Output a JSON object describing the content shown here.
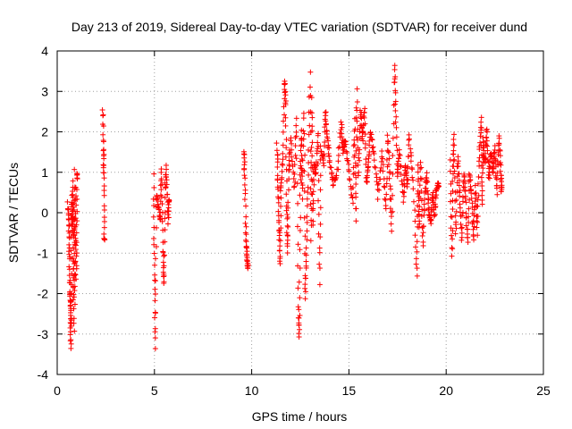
{
  "chart_data": {
    "type": "scatter",
    "title": "Day 213 of 2019, Sidereal Day-to-day VTEC variation (SDTVAR) for receiver dund",
    "xlabel": "GPS time / hours",
    "ylabel": "SDTVAR / TECUs",
    "xlim": [
      0,
      25
    ],
    "ylim": [
      -4,
      4
    ],
    "xticks": [
      "0",
      "5",
      "10",
      "15",
      "20",
      "25"
    ],
    "yticks": [
      "-4",
      "-3",
      "-2",
      "-1",
      "0",
      "1",
      "2",
      "3",
      "4"
    ],
    "grid": true,
    "marker": "plus",
    "color": "#ff0000",
    "series": [
      {
        "name": "SDTVAR",
        "segments": [
          [
            0.55,
            0.2
          ],
          [
            0.6,
            -0.3
          ],
          [
            0.62,
            -1.0
          ],
          [
            0.65,
            -1.9
          ],
          [
            0.68,
            -2.4
          ],
          [
            0.7,
            -3.3
          ],
          [
            0.72,
            -2.0
          ],
          [
            0.75,
            0.4
          ],
          [
            0.78,
            -0.5
          ],
          [
            0.8,
            0.8
          ],
          [
            0.82,
            -2.1
          ],
          [
            0.85,
            0.1
          ],
          [
            0.88,
            -3.0
          ],
          [
            0.9,
            1.0
          ],
          [
            0.92,
            -2.2
          ],
          [
            0.95,
            0.6
          ],
          [
            0.98,
            -1.6
          ],
          [
            1.02,
            0.9
          ],
          [
            2.35,
            2.6
          ],
          [
            2.38,
            1.5
          ],
          [
            2.4,
            0.9
          ],
          [
            2.42,
            -0.6
          ],
          [
            4.95,
            0.9
          ],
          [
            5.0,
            -1.3
          ],
          [
            5.05,
            -3.3
          ],
          [
            5.1,
            0.5
          ],
          [
            5.2,
            0.1
          ],
          [
            5.3,
            -0.2
          ],
          [
            5.35,
            1.1
          ],
          [
            5.45,
            -0.9
          ],
          [
            5.5,
            -1.8
          ],
          [
            5.55,
            0.6
          ],
          [
            5.6,
            1.1
          ],
          [
            5.7,
            -0.2
          ],
          [
            5.75,
            0.3
          ],
          [
            9.6,
            1.5
          ],
          [
            9.65,
            0.9
          ],
          [
            9.7,
            -0.5
          ],
          [
            9.75,
            -1.1
          ],
          [
            9.8,
            -1.3
          ],
          [
            11.3,
            1.7
          ],
          [
            11.35,
            0.8
          ],
          [
            11.4,
            -0.3
          ],
          [
            11.45,
            -1.3
          ],
          [
            11.5,
            0.5
          ],
          [
            11.6,
            1.3
          ],
          [
            11.7,
            3.3
          ],
          [
            11.75,
            2.7
          ],
          [
            11.8,
            0.2
          ],
          [
            11.85,
            -1.0
          ],
          [
            11.9,
            1.0
          ],
          [
            12.0,
            1.8
          ],
          [
            12.2,
            0.6
          ],
          [
            12.3,
            2.4
          ],
          [
            12.4,
            -2.4
          ],
          [
            12.45,
            -3.0
          ],
          [
            12.5,
            0.8
          ],
          [
            12.55,
            2.0
          ],
          [
            12.6,
            0.4
          ],
          [
            12.7,
            2.5
          ],
          [
            12.75,
            -2.1
          ],
          [
            12.8,
            -1.1
          ],
          [
            12.9,
            0.7
          ],
          [
            13.0,
            3.4
          ],
          [
            13.05,
            -0.7
          ],
          [
            13.1,
            2.8
          ],
          [
            13.15,
            -0.3
          ],
          [
            13.2,
            1.2
          ],
          [
            13.3,
            0.9
          ],
          [
            13.4,
            2.0
          ],
          [
            13.5,
            -1.7
          ],
          [
            13.55,
            1.6
          ],
          [
            13.7,
            1.2
          ],
          [
            13.8,
            2.5
          ],
          [
            13.9,
            1.8
          ],
          [
            14.0,
            1.3
          ],
          [
            14.2,
            0.7
          ],
          [
            14.4,
            1.0
          ],
          [
            14.6,
            2.2
          ],
          [
            14.7,
            1.5
          ],
          [
            14.8,
            1.8
          ],
          [
            15.0,
            1.1
          ],
          [
            15.2,
            0.2
          ],
          [
            15.3,
            2.3
          ],
          [
            15.35,
            -0.2
          ],
          [
            15.4,
            3.0
          ],
          [
            15.5,
            0.9
          ],
          [
            15.6,
            2.5
          ],
          [
            15.7,
            1.8
          ],
          [
            15.8,
            2.6
          ],
          [
            15.9,
            0.7
          ],
          [
            16.0,
            1.2
          ],
          [
            16.1,
            2.0
          ],
          [
            16.3,
            1.4
          ],
          [
            16.5,
            0.4
          ],
          [
            16.7,
            1.5
          ],
          [
            16.9,
            0.1
          ],
          [
            17.0,
            1.9
          ],
          [
            17.1,
            0.8
          ],
          [
            17.2,
            -0.4
          ],
          [
            17.35,
            3.6
          ],
          [
            17.4,
            2.6
          ],
          [
            17.5,
            0.9
          ],
          [
            17.6,
            1.5
          ],
          [
            17.8,
            0.3
          ],
          [
            17.9,
            1.2
          ],
          [
            18.0,
            0.6
          ],
          [
            18.1,
            1.9
          ],
          [
            18.3,
            0.8
          ],
          [
            18.5,
            -1.6
          ],
          [
            18.55,
            1.1
          ],
          [
            18.6,
            -0.4
          ],
          [
            18.7,
            1.3
          ],
          [
            18.8,
            -0.8
          ],
          [
            18.9,
            0.4
          ],
          [
            19.0,
            1.0
          ],
          [
            19.1,
            0.1
          ],
          [
            19.2,
            -0.3
          ],
          [
            19.3,
            0.5
          ],
          [
            19.4,
            -0.1
          ],
          [
            19.5,
            0.6
          ],
          [
            19.6,
            0.7
          ],
          [
            20.2,
            1.3
          ],
          [
            20.3,
            -1.1
          ],
          [
            20.35,
            1.0
          ],
          [
            20.4,
            1.9
          ],
          [
            20.5,
            -0.6
          ],
          [
            20.6,
            1.4
          ],
          [
            20.7,
            0.5
          ],
          [
            20.8,
            -0.7
          ],
          [
            20.9,
            1.0
          ],
          [
            21.0,
            0.3
          ],
          [
            21.1,
            -0.8
          ],
          [
            21.2,
            0.9
          ],
          [
            21.3,
            0.5
          ],
          [
            21.4,
            -0.7
          ],
          [
            21.5,
            0.6
          ],
          [
            21.6,
            -0.5
          ],
          [
            21.7,
            1.3
          ],
          [
            21.8,
            2.4
          ],
          [
            21.85,
            0.2
          ],
          [
            21.9,
            1.8
          ],
          [
            22.0,
            1.2
          ],
          [
            22.1,
            2.1
          ],
          [
            22.2,
            0.8
          ],
          [
            22.3,
            1.5
          ],
          [
            22.4,
            1.0
          ],
          [
            22.5,
            1.6
          ],
          [
            22.6,
            0.5
          ],
          [
            22.7,
            1.9
          ],
          [
            22.8,
            1.1
          ],
          [
            22.85,
            0.6
          ]
        ]
      }
    ]
  }
}
